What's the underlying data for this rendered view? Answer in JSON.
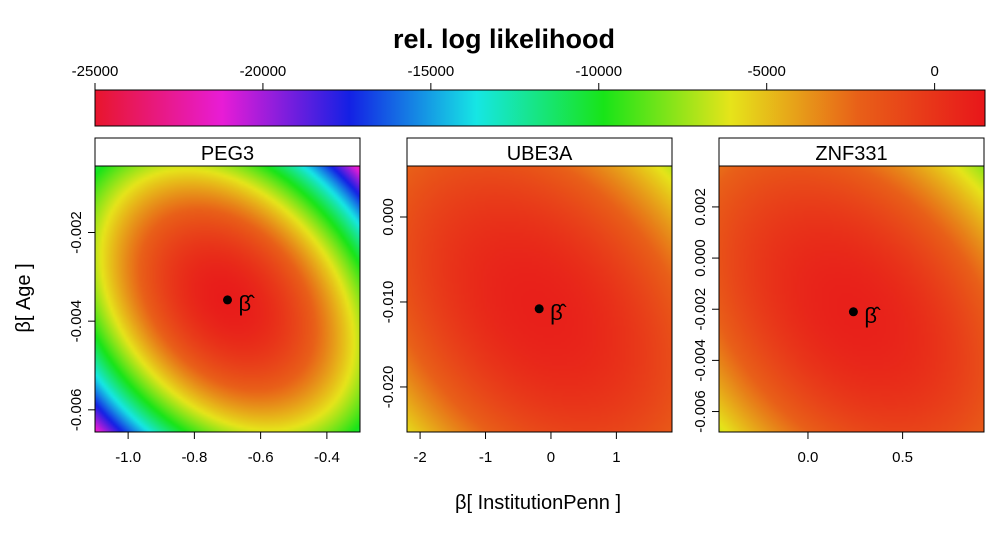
{
  "chart_data": {
    "type": "heatmap",
    "title": "rel. log likelihood",
    "xlabel": "β[ InstitutionPenn ]",
    "ylabel": "β[ Age ]",
    "colorbar": {
      "range": [
        -25000,
        1500
      ],
      "ticks": [
        -25000,
        -20000,
        -15000,
        -10000,
        -5000,
        0
      ],
      "tick_labels": [
        "-25000",
        "-20000",
        "-15000",
        "-10000",
        "-5000",
        "0"
      ],
      "colors": [
        "#E8162C",
        "#E81CD6",
        "#1420E4",
        "#16E6E4",
        "#18E418",
        "#E6E41A",
        "#E86018",
        "#E8161A"
      ]
    },
    "panels": [
      {
        "name": "PEG3",
        "xlim": [
          -1.1,
          -0.3
        ],
        "ylim": [
          -0.0065,
          -0.0005
        ],
        "xticks": [
          -1.0,
          -0.8,
          -0.6,
          -0.4
        ],
        "xtick_labels": [
          "-1.0",
          "-0.8",
          "-0.6",
          "-0.4"
        ],
        "yticks": [
          -0.006,
          -0.004,
          -0.002
        ],
        "ytick_labels": [
          "-0.006",
          "-0.004",
          "-0.002"
        ],
        "mle": {
          "x": -0.7,
          "y": -0.00352,
          "label": "β̂"
        }
      },
      {
        "name": "UBE3A",
        "xlim": [
          -2.2,
          1.85
        ],
        "ylim": [
          -0.0253,
          0.006
        ],
        "xticks": [
          -2,
          -1,
          0,
          1
        ],
        "xtick_labels": [
          "-2",
          "-1",
          "0",
          "1"
        ],
        "yticks": [
          -0.02,
          -0.01,
          0.0
        ],
        "ytick_labels": [
          "-0.020",
          "-0.010",
          "0.000"
        ],
        "mle": {
          "x": -0.18,
          "y": -0.0108,
          "label": "β̂"
        }
      },
      {
        "name": "ZNF331",
        "xlim": [
          -0.47,
          0.93
        ],
        "ylim": [
          -0.0068,
          0.0036
        ],
        "xticks": [
          0.0,
          0.5
        ],
        "xtick_labels": [
          "0.0",
          "0.5"
        ],
        "yticks": [
          -0.006,
          -0.004,
          -0.002,
          0.0,
          0.002
        ],
        "ytick_labels": [
          "-0.006",
          "-0.004",
          "-0.002",
          "0.000",
          "0.002"
        ],
        "mle": {
          "x": 0.24,
          "y": -0.0021,
          "label": "β̂"
        }
      }
    ]
  }
}
